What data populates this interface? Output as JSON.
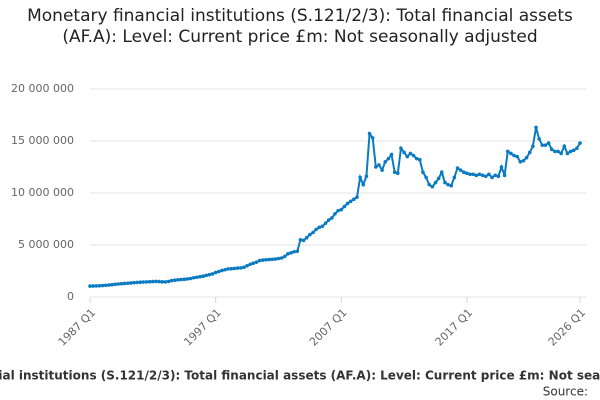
{
  "chart_data": {
    "type": "line",
    "title": "Monetary financial institutions (S.121/2/3): Total financial assets (AF.A): Level: Current price £m: Not seasonally adjusted",
    "source_label": "Source:",
    "color": "#0b7bc1",
    "grid": true,
    "ylim": [
      0,
      20000000
    ],
    "yticks": [
      0,
      {
        "value": 5000000,
        "label": "5 000 000"
      },
      {
        "value": 10000000,
        "label": "10 000 000"
      },
      {
        "value": 15000000,
        "label": "15 000 000"
      },
      {
        "value": 20000000,
        "label": "20 000 000"
      }
    ],
    "categories": [
      "1987 Q1",
      null,
      null,
      null,
      null,
      null,
      null,
      null,
      null,
      null,
      null,
      null,
      null,
      null,
      null,
      null,
      null,
      null,
      null,
      null,
      null,
      null,
      null,
      null,
      null,
      null,
      null,
      null,
      null,
      null,
      null,
      null,
      null,
      null,
      null,
      null,
      null,
      null,
      null,
      null,
      "1997 Q1",
      null,
      null,
      null,
      null,
      null,
      null,
      null,
      null,
      null,
      null,
      null,
      null,
      null,
      null,
      null,
      null,
      null,
      null,
      null,
      null,
      null,
      null,
      null,
      null,
      null,
      null,
      null,
      null,
      null,
      null,
      null,
      null,
      null,
      null,
      null,
      null,
      null,
      null,
      null,
      "2007 Q1",
      null,
      null,
      null,
      null,
      null,
      null,
      null,
      null,
      null,
      null,
      null,
      null,
      null,
      null,
      null,
      null,
      null,
      null,
      null,
      null,
      null,
      null,
      null,
      null,
      null,
      null,
      null,
      null,
      null,
      null,
      null,
      null,
      null,
      null,
      null,
      null,
      null,
      null,
      null,
      "2017 Q1",
      null,
      null,
      null,
      null,
      null,
      null,
      null,
      null,
      null,
      null,
      null,
      null,
      null,
      null,
      null,
      null,
      null,
      null,
      null,
      null,
      null,
      null,
      null,
      null,
      null,
      null,
      null,
      null,
      null,
      null,
      null,
      null,
      null,
      null,
      null,
      "2026 Q1"
    ],
    "values": [
      1050000,
      1060000,
      1070000,
      1080000,
      1100000,
      1120000,
      1150000,
      1180000,
      1220000,
      1250000,
      1280000,
      1300000,
      1320000,
      1350000,
      1380000,
      1400000,
      1420000,
      1440000,
      1450000,
      1470000,
      1480000,
      1500000,
      1480000,
      1460000,
      1450000,
      1500000,
      1580000,
      1620000,
      1650000,
      1680000,
      1700000,
      1740000,
      1780000,
      1850000,
      1900000,
      1950000,
      2000000,
      2080000,
      2150000,
      2220000,
      2350000,
      2450000,
      2550000,
      2620000,
      2700000,
      2720000,
      2750000,
      2780000,
      2800000,
      2850000,
      3000000,
      3150000,
      3250000,
      3350000,
      3500000,
      3550000,
      3580000,
      3600000,
      3620000,
      3650000,
      3700000,
      3750000,
      3900000,
      4150000,
      4250000,
      4350000,
      4400000,
      5500000,
      5450000,
      5700000,
      6000000,
      6200000,
      6500000,
      6700000,
      6800000,
      7100000,
      7400000,
      7600000,
      8000000,
      8300000,
      8400000,
      8700000,
      9000000,
      9200000,
      9400000,
      9600000,
      11500000,
      10800000,
      11600000,
      15700000,
      15300000,
      12500000,
      12700000,
      12200000,
      13000000,
      13300000,
      13700000,
      12000000,
      11900000,
      14300000,
      13900000,
      13500000,
      13800000,
      13600000,
      13300000,
      13200000,
      12000000,
      11500000,
      10800000,
      10600000,
      11000000,
      11400000,
      12000000,
      11000000,
      10800000,
      10700000,
      11500000,
      12400000,
      12200000,
      12000000,
      11900000,
      11800000,
      11800000,
      11700000,
      11800000,
      11700000,
      11600000,
      11800000,
      11500000,
      11700000,
      11600000,
      12500000,
      11700000,
      14000000,
      13800000,
      13600000,
      13500000,
      13000000,
      13100000,
      13400000,
      13900000,
      14500000,
      16300000,
      15200000,
      14600000,
      14600000,
      14800000,
      14200000,
      14000000,
      14000000,
      13800000,
      14500000,
      13800000,
      14000000,
      14100000,
      14300000,
      14800000
    ]
  }
}
